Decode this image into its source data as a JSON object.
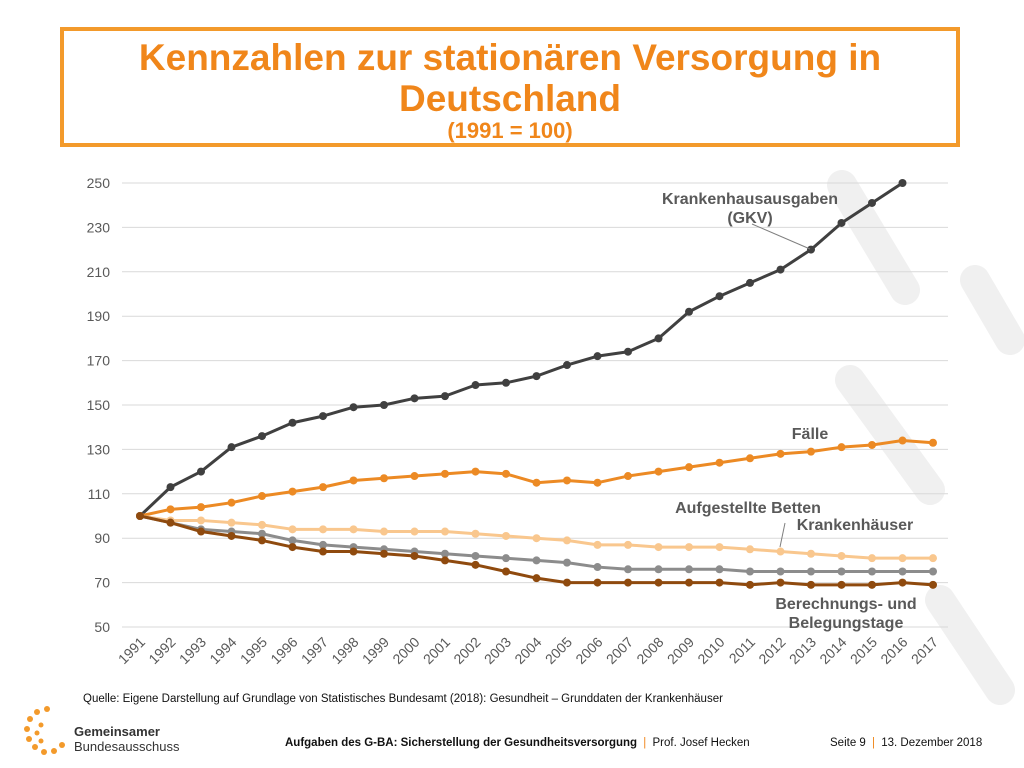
{
  "title": {
    "main": "Kennzahlen zur stationären Versorgung in Deutschland",
    "sub": "(1991 = 100)"
  },
  "chart_data": {
    "type": "line",
    "title": "Kennzahlen zur stationären Versorgung in Deutschland (1991 = 100)",
    "xlabel": "",
    "ylabel": "",
    "ylim": [
      50,
      250
    ],
    "yticks": [
      250,
      230,
      210,
      190,
      170,
      150,
      130,
      110,
      90,
      70,
      50
    ],
    "grid": true,
    "categories": [
      "1991",
      "1992",
      "1993",
      "1994",
      "1995",
      "1996",
      "1997",
      "1998",
      "1999",
      "2000",
      "2001",
      "2002",
      "2003",
      "2004",
      "2005",
      "2006",
      "2007",
      "2008",
      "2009",
      "2010",
      "2011",
      "2012",
      "2013",
      "2014",
      "2015",
      "2016",
      "2017"
    ],
    "series": [
      {
        "name": "Krankenhausausgaben (GKV)",
        "color": "#404040",
        "values": [
          100,
          113,
          120,
          131,
          136,
          142,
          145,
          149,
          150,
          153,
          154,
          159,
          160,
          163,
          168,
          172,
          174,
          180,
          192,
          199,
          205,
          211,
          220,
          232,
          241,
          250,
          null
        ]
      },
      {
        "name": "Fälle",
        "color": "#ec8a24",
        "values": [
          100,
          103,
          104,
          106,
          109,
          111,
          113,
          116,
          117,
          118,
          119,
          120,
          119,
          115,
          116,
          115,
          118,
          120,
          122,
          124,
          126,
          128,
          129,
          131,
          132,
          134,
          133
        ]
      },
      {
        "name": "Aufgestellte Betten",
        "color": "#f9c78e",
        "values": [
          100,
          98,
          98,
          97,
          96,
          94,
          94,
          94,
          93,
          93,
          93,
          92,
          91,
          90,
          89,
          87,
          87,
          86,
          86,
          86,
          85,
          84,
          83,
          82,
          81,
          81,
          81
        ]
      },
      {
        "name": "Krankenhäuser",
        "color": "#8c8c8c",
        "values": [
          100,
          97,
          94,
          93,
          92,
          89,
          87,
          86,
          85,
          84,
          83,
          82,
          81,
          80,
          79,
          77,
          76,
          76,
          76,
          76,
          75,
          75,
          75,
          75,
          75,
          75,
          75
        ]
      },
      {
        "name": "Berechnungs- und Belegungstage",
        "color": "#8f4a0e",
        "values": [
          100,
          97,
          93,
          91,
          89,
          86,
          84,
          84,
          83,
          82,
          80,
          78,
          75,
          72,
          70,
          70,
          70,
          70,
          70,
          70,
          69,
          70,
          69,
          69,
          69,
          70,
          69
        ]
      }
    ],
    "annotations": [
      {
        "series": "Krankenhausausgaben (GKV)",
        "lines": [
          "Krankenhausausgaben",
          "(GKV)"
        ]
      },
      {
        "series": "Fälle",
        "lines": [
          "Fälle"
        ]
      },
      {
        "series": "Aufgestellte Betten",
        "lines": [
          "Aufgestellte Betten"
        ]
      },
      {
        "series": "Krankenhäuser",
        "lines": [
          "Krankenhäuser"
        ]
      },
      {
        "series": "Berechnungs- und Belegungstage",
        "lines": [
          "Berechnungs- und",
          "Belegungstage"
        ]
      }
    ]
  },
  "source": "Quelle: Eigene Darstellung auf Grundlage von Statistisches Bundesamt (2018): Gesundheit – Grunddaten der Krankenhäuser",
  "logo": {
    "line1": "Gemeinsamer",
    "line2": "Bundesausschuss"
  },
  "footer": {
    "presentation": "Aufgaben des G-BA: Sicherstellung der Gesundheitsversorgung",
    "sep": "|",
    "author": "Prof. Josef Hecken",
    "page": "Seite 9",
    "date": "13. Dezember 2018"
  },
  "colors": {
    "accent": "#f0861a",
    "frame": "#f39a2b",
    "grid": "#d9d9d9",
    "text": "#595959"
  }
}
